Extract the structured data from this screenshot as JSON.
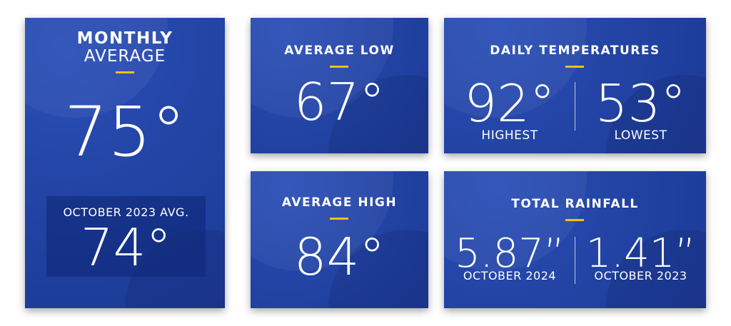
{
  "monthly": {
    "title": "MONTHLY",
    "subtitle": "AVERAGE",
    "value": "75°",
    "comparison": {
      "label": "OCTOBER 2023 AVG.",
      "value": "74°"
    }
  },
  "average_low": {
    "title": "AVERAGE LOW",
    "value": "67°"
  },
  "average_high": {
    "title": "AVERAGE HIGH",
    "value": "84°"
  },
  "daily_temperatures": {
    "title": "DAILY TEMPERATURES",
    "items": [
      {
        "value": "92°",
        "label": "HIGHEST"
      },
      {
        "value": "53°",
        "label": "LOWEST"
      }
    ]
  },
  "total_rainfall": {
    "title": "TOTAL RAINFALL",
    "items": [
      {
        "value": "5.87”",
        "label": "OCTOBER 2024"
      },
      {
        "value": "1.41”",
        "label": "OCTOBER 2023"
      }
    ]
  }
}
